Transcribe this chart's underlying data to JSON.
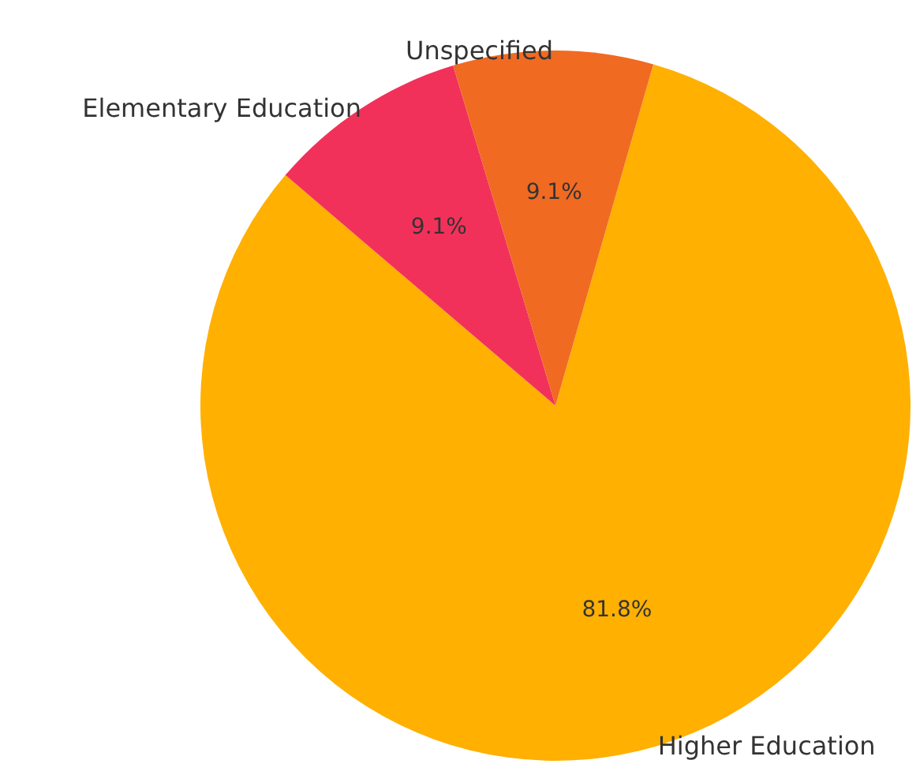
{
  "chart_data": {
    "type": "pie",
    "categories": [
      "Higher Education",
      "Elementary Education",
      "Unspecified"
    ],
    "values": [
      81.8,
      9.1,
      9.1
    ],
    "colors": [
      "#ffb000",
      "#f2315a",
      "#f06a22"
    ],
    "value_labels": [
      "81.8%",
      "9.1%",
      "9.1%"
    ]
  }
}
